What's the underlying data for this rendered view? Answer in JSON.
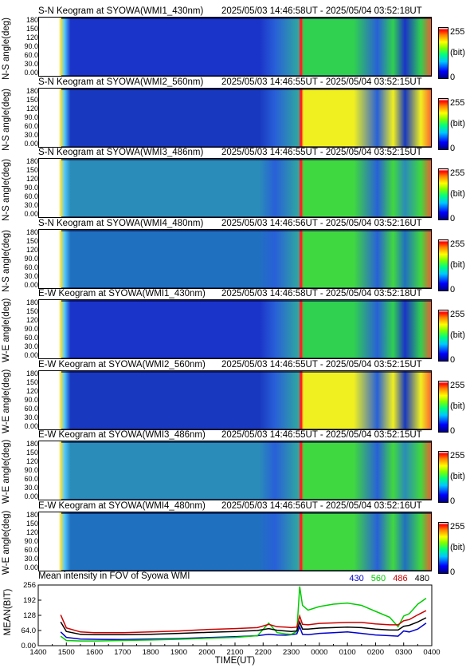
{
  "panels": [
    {
      "title": "S-N Keogram at SYOWA(WMI1_430nm)",
      "time_range": "2025/05/03 14:46:58UT - 2025/05/04 03:52:18UT",
      "ylabel": "N-S angle(deg)",
      "base_color": "#1a33c8",
      "bright_color": "#30d050"
    },
    {
      "title": "S-N Keogram at SYOWA(WMI2_560nm)",
      "time_range": "2025/05/03 14:46:55UT - 2025/05/04 03:52:15UT",
      "ylabel": "N-S angle(deg)",
      "base_color": "#1838c0",
      "bright_color": "#f0f020"
    },
    {
      "title": "S-N Keogram at SYOWA(WMI3_486nm)",
      "time_range": "2025/05/03 14:46:55UT - 2025/05/04 03:52:15UT",
      "ylabel": "N-S angle(deg)",
      "base_color": "#2a8cb8",
      "bright_color": "#40d840"
    },
    {
      "title": "S-N Keogram at SYOWA(WMI4_480nm)",
      "time_range": "2025/05/03 14:46:56UT - 2025/05/04 03:52:16UT",
      "ylabel": "N-S angle(deg)",
      "base_color": "#2070c0",
      "bright_color": "#40d840"
    },
    {
      "title": "E-W Keogram at SYOWA(WMI1_430nm)",
      "time_range": "2025/05/03 14:46:58UT - 2025/05/04 03:52:18UT",
      "ylabel": "W-E angle(deg)",
      "base_color": "#1a33c8",
      "bright_color": "#30d050"
    },
    {
      "title": "E-W Keogram at SYOWA(WMI2_560nm)",
      "time_range": "2025/05/03 14:46:55UT - 2025/05/04 03:52:15UT",
      "ylabel": "W-E angle(deg)",
      "base_color": "#1838c0",
      "bright_color": "#f0f020"
    },
    {
      "title": "E-W Keogram at SYOWA(WMI3_486nm)",
      "time_range": "2025/05/03 14:46:55UT - 2025/05/04 03:52:15UT",
      "ylabel": "W-E angle(deg)",
      "base_color": "#2a8cb8",
      "bright_color": "#40d840"
    },
    {
      "title": "E-W Keogram at SYOWA(WMI4_480nm)",
      "time_range": "2025/05/03 14:46:56UT - 2025/05/04 03:52:16UT",
      "ylabel": "W-E angle(deg)",
      "base_color": "#2070c0",
      "bright_color": "#40d840"
    }
  ],
  "ns_ticks": [
    "180",
    "150",
    "120",
    "90.0",
    "60.0",
    "30.0",
    "0.00"
  ],
  "colorbar": {
    "max": "255",
    "unit": "(bit)",
    "min": "0"
  },
  "mean_panel": {
    "title": "Mean intensity in FOV of Syowa WMI",
    "ylabel": "MEAN(BIT)",
    "yticks": [
      "256",
      "192",
      "128",
      "64.0",
      "0.00"
    ],
    "xlabel": "TIME(UT)",
    "xticks": [
      "1400",
      "1500",
      "1600",
      "1700",
      "1800",
      "1900",
      "2000",
      "2100",
      "2200",
      "2300",
      "0000",
      "0100",
      "0200",
      "0300",
      "0400"
    ]
  },
  "chart_data": {
    "type": "line",
    "title": "Mean intensity in FOV of Syowa WMI",
    "xlabel": "TIME(UT)",
    "ylabel": "MEAN(BIT)",
    "xlim": [
      "1400",
      "0400"
    ],
    "ylim": [
      0,
      256
    ],
    "x_hours": [
      14.8,
      15.0,
      15.5,
      16,
      17,
      18,
      19,
      20,
      21,
      21.8,
      22.2,
      22.5,
      22.8,
      23.0,
      23.2,
      23.3,
      23.4,
      23.6,
      24.0,
      24.5,
      25.0,
      25.5,
      26.0,
      26.5,
      26.8,
      27.0,
      27.2,
      27.5,
      27.8
    ],
    "series": [
      {
        "name": "430",
        "color": "#0000cc",
        "values": [
          58,
          35,
          28,
          27,
          26,
          28,
          30,
          34,
          38,
          42,
          48,
          45,
          44,
          46,
          50,
          80,
          48,
          46,
          52,
          55,
          58,
          52,
          45,
          42,
          40,
          62,
          58,
          70,
          95
        ]
      },
      {
        "name": "560",
        "color": "#00cc00",
        "values": [
          40,
          22,
          20,
          20,
          22,
          24,
          27,
          31,
          35,
          42,
          95,
          55,
          50,
          48,
          60,
          250,
          170,
          150,
          165,
          175,
          180,
          170,
          145,
          120,
          80,
          125,
          135,
          175,
          200
        ]
      },
      {
        "name": "486",
        "color": "#cc0000",
        "values": [
          130,
          75,
          58,
          55,
          55,
          58,
          62,
          68,
          72,
          76,
          90,
          80,
          78,
          76,
          78,
          125,
          90,
          88,
          94,
          96,
          98,
          98,
          92,
          88,
          88,
          105,
          110,
          130,
          148
        ]
      },
      {
        "name": "480",
        "color": "#000000",
        "values": [
          100,
          60,
          48,
          46,
          46,
          48,
          52,
          56,
          60,
          64,
          72,
          65,
          62,
          60,
          62,
          100,
          70,
          70,
          74,
          76,
          78,
          76,
          70,
          66,
          66,
          82,
          86,
          100,
          118
        ]
      }
    ]
  }
}
